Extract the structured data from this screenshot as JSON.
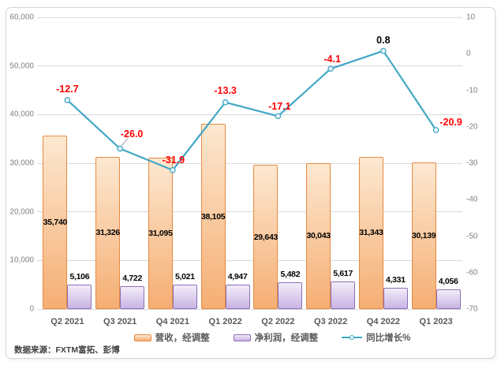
{
  "source_text": "数据来源：FXTM富拓、彭博",
  "colors": {
    "revenue_fill_top": "#FDE8D1",
    "revenue_fill_bottom": "#F5AE73",
    "revenue_border": "#E78A42",
    "profit_fill_top": "#F2EDF9",
    "profit_fill_bottom": "#C9B3E3",
    "profit_border": "#8A6FB6",
    "line": "#41A7C6",
    "marker_fill": "#EAF5FA",
    "negative_label": "#FF0000",
    "positive_label": "#000000",
    "bar_label": "#000000",
    "axis_tick": "#7F7F7F",
    "category_label": "#595959",
    "legend_text": "#595959",
    "grid": "#D9D9D9",
    "frame_border": "#D6D6D6",
    "leader": "#A6A6A6",
    "source_text_color": "#3F3F3F"
  },
  "chart_data": {
    "type": "bar+line combo, dual axis",
    "title": "",
    "categories": [
      "Q2 2021",
      "Q3 2021",
      "Q4 2021",
      "Q1 2022",
      "Q2 2022",
      "Q3 2022",
      "Q4 2022",
      "Q1 2023"
    ],
    "series": [
      {
        "name": "营收，经调整",
        "type": "bar",
        "axis": "left",
        "values": [
          35740,
          31326,
          31095,
          38105,
          29643,
          30043,
          31343,
          30139
        ],
        "labels": [
          "35,740",
          "31,326",
          "31,095",
          "38,105",
          "29,643",
          "30,043",
          "31,343",
          "30,139"
        ]
      },
      {
        "name": "净利润，经调整",
        "type": "bar",
        "axis": "left",
        "values": [
          5106,
          4722,
          5021,
          4947,
          5482,
          5617,
          4331,
          4056
        ],
        "labels": [
          "5,106",
          "4,722",
          "5,021",
          "4,947",
          "5,482",
          "5,617",
          "4,331",
          "4,056"
        ]
      },
      {
        "name": "同比增长%",
        "type": "line",
        "axis": "right",
        "values": [
          -12.7,
          -26.0,
          -31.9,
          -13.3,
          -17.1,
          -4.1,
          0.8,
          -20.9
        ],
        "labels": [
          "-12.7",
          "-26.0",
          "-31.9",
          "-13.3",
          "-17.1",
          "-4.1",
          "0.8",
          "-20.9"
        ],
        "label_offsets": [
          [
            0,
            -14
          ],
          [
            15,
            -19
          ],
          [
            1,
            -13
          ],
          [
            0,
            -15
          ],
          [
            2,
            -12
          ],
          [
            2,
            -12
          ],
          [
            0,
            -14
          ],
          [
            19,
            -10
          ]
        ],
        "leader_line_at_index": 1
      }
    ],
    "left_axis": {
      "min": 0,
      "max": 60000,
      "step": 10000,
      "tick_labels": [
        "0",
        "10,000",
        "20,000",
        "30,000",
        "40,000",
        "50,000",
        "60,000"
      ]
    },
    "right_axis": {
      "min": -70,
      "max": 10,
      "step": 10,
      "tick_labels": [
        "-70",
        "-60",
        "-50",
        "-40",
        "-30",
        "-20",
        "-10",
        "0",
        "10"
      ]
    },
    "gridlines": true,
    "legend_position": "bottom"
  }
}
